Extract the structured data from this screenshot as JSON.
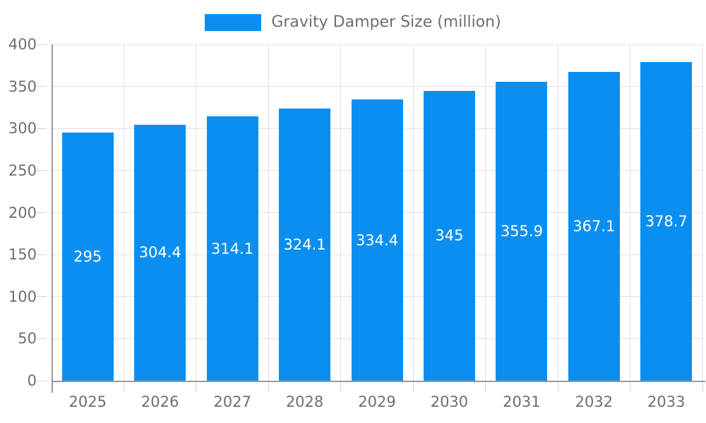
{
  "legend": {
    "label": "Gravity Damper Size (million)"
  },
  "colors": {
    "bar": "#0A8FF0",
    "axis": "#999999",
    "grid": "#E2E2E2",
    "tick": "#D0D0D0",
    "text": "#6E6E6E",
    "bar_label": "#FFFFFF",
    "background": "#FFFFFF"
  },
  "chart_data": {
    "type": "bar",
    "categories": [
      "2025",
      "2026",
      "2027",
      "2028",
      "2029",
      "2030",
      "2031",
      "2032",
      "2033"
    ],
    "series": [
      {
        "name": "Gravity Damper Size (million)",
        "values": [
          295,
          304.4,
          314.1,
          324.1,
          334.4,
          345,
          355.9,
          367.1,
          378.7
        ]
      }
    ],
    "title": "",
    "xlabel": "",
    "ylabel": "",
    "ylim": [
      0,
      400
    ],
    "ytick_step": 50,
    "grid": true,
    "legend_position": "top",
    "bar_labels_inside": true
  }
}
